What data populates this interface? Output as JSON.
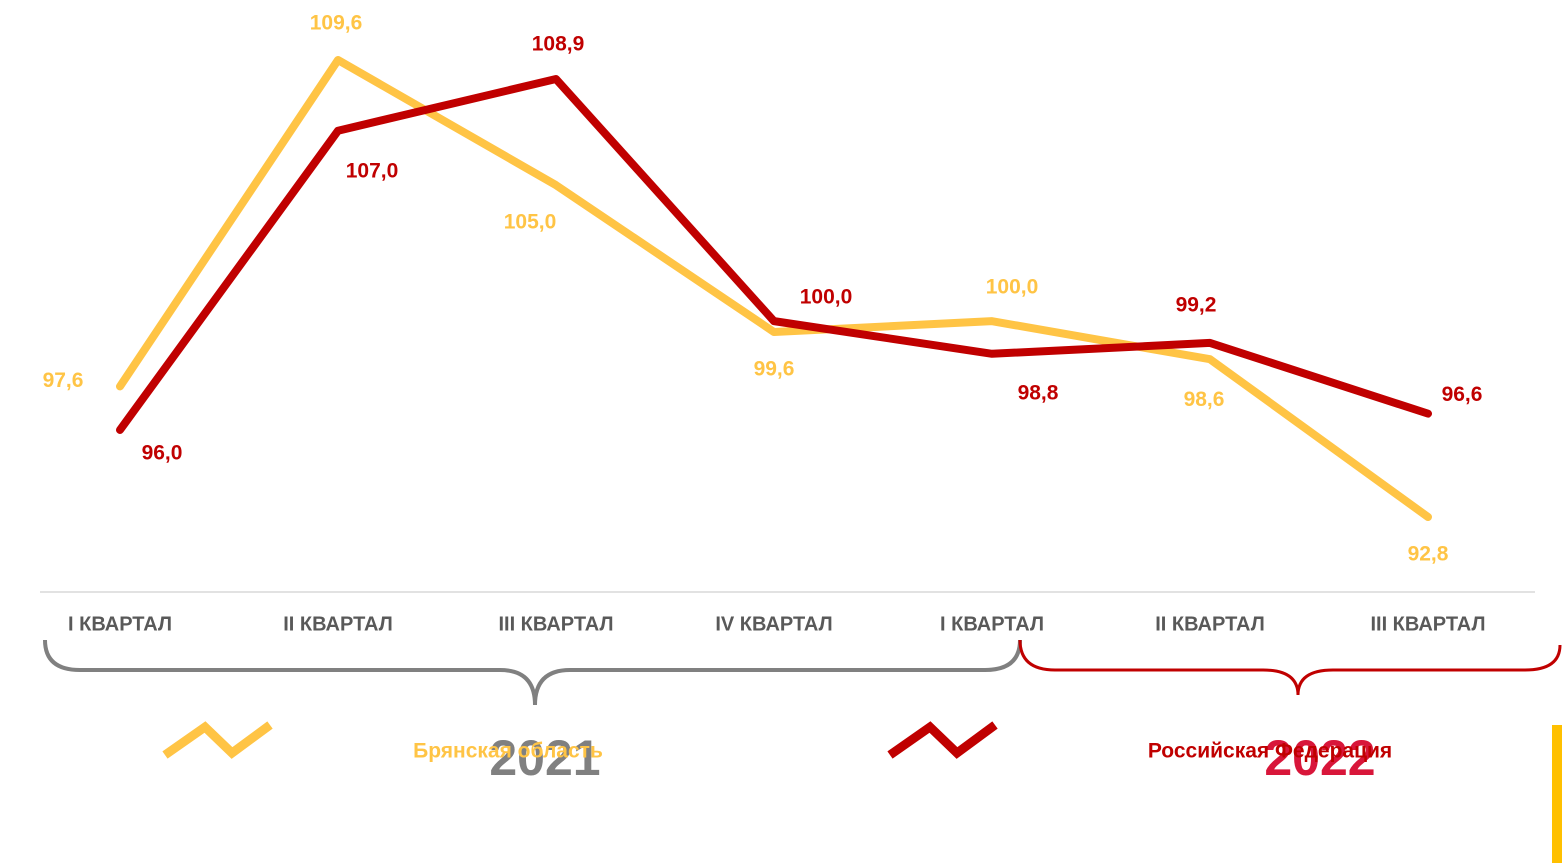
{
  "chart_data": {
    "type": "line",
    "categories": [
      "I КВАРТАЛ",
      "II КВАРТАЛ",
      "III КВАРТАЛ",
      "IV КВАРТАЛ",
      "I КВАРТАЛ",
      "II КВАРТАЛ",
      "III КВАРТАЛ"
    ],
    "series": [
      {
        "name": "Брянская область",
        "color": "#ffc445",
        "values": [
          97.6,
          109.6,
          105.0,
          99.6,
          100.0,
          98.6,
          92.8
        ],
        "value_labels": [
          "97,6",
          "109,6",
          "105,0",
          "99,6",
          "100,0",
          "98,6",
          "92,8"
        ]
      },
      {
        "name": "Российская Федерация",
        "color": "#c00000",
        "values": [
          96.0,
          107.0,
          108.9,
          100.0,
          98.8,
          99.2,
          96.6
        ],
        "value_labels": [
          "96,0",
          "107,0",
          "108,9",
          "100,0",
          "98,8",
          "99,2",
          "96,6"
        ]
      }
    ],
    "groups": [
      {
        "label": "2021",
        "color": "#808080"
      },
      {
        "label": "2022",
        "color": "#d8163a"
      }
    ]
  }
}
